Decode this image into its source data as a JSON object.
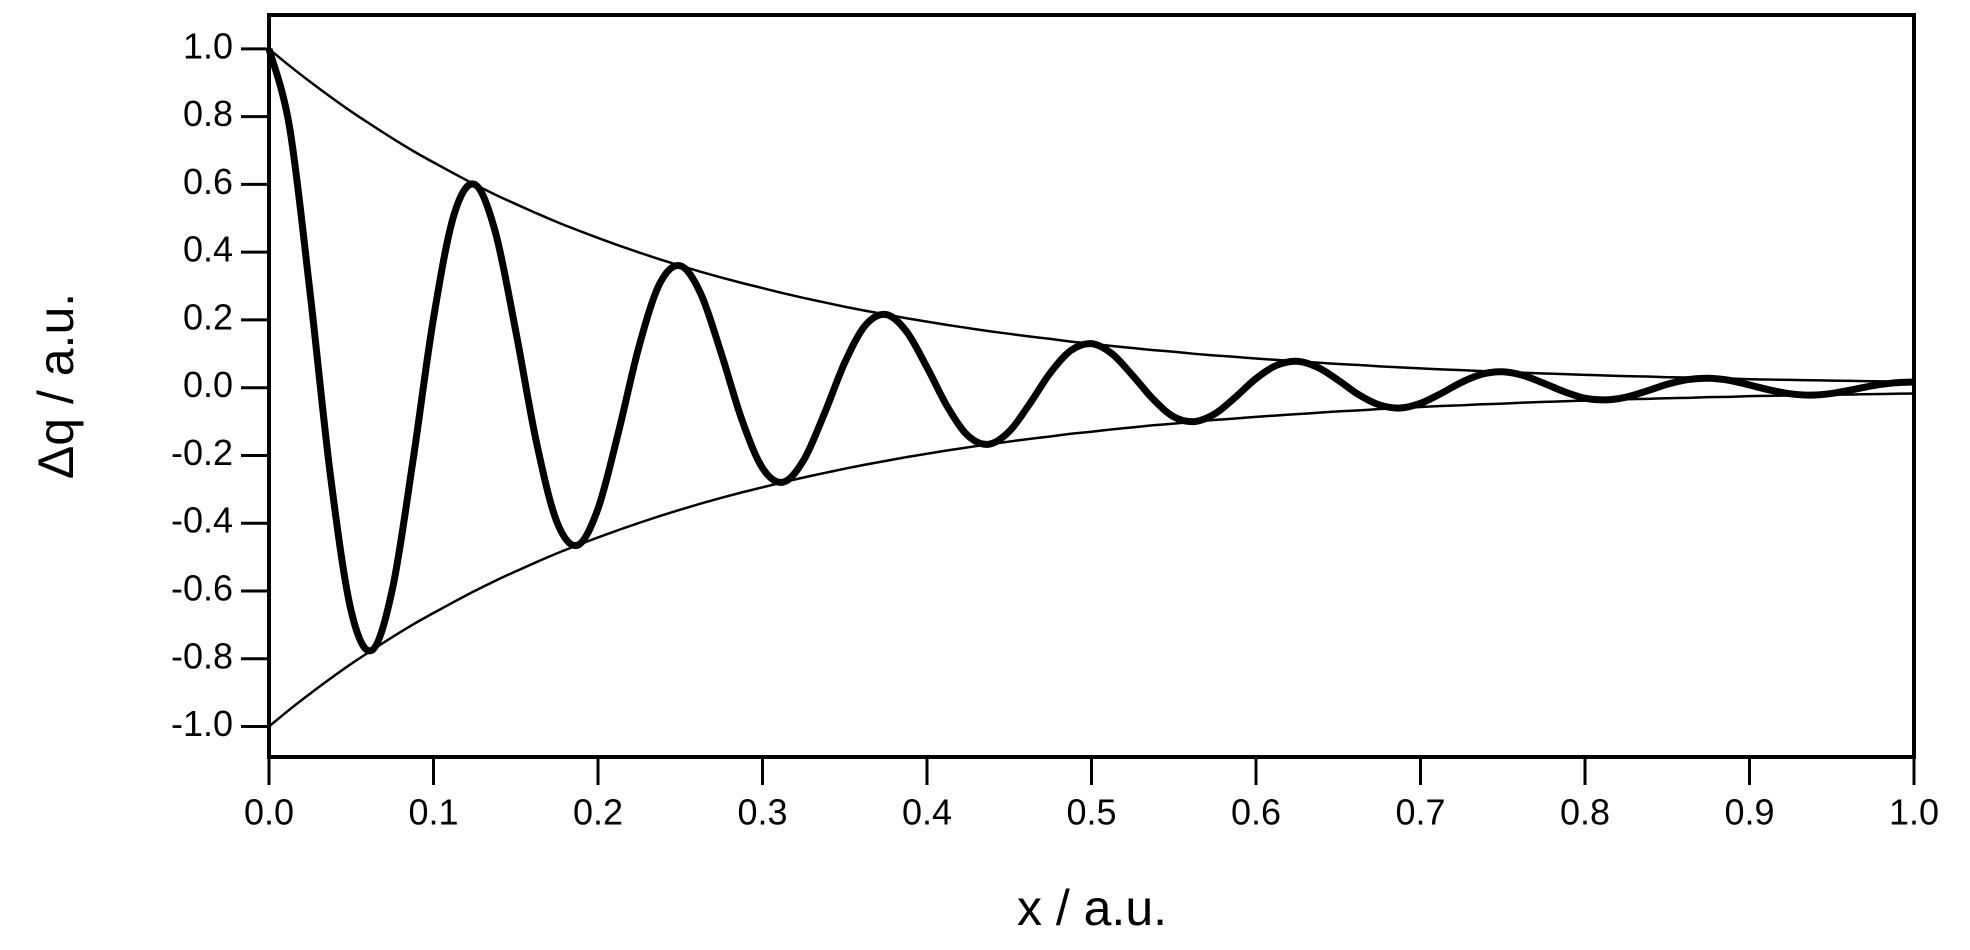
{
  "chart_data": {
    "type": "line",
    "xlabel": "x / a.u.",
    "ylabel": "Δq / a.u.",
    "x": [
      0,
      0.0125,
      0.025,
      0.0375,
      0.05,
      0.0625,
      0.075,
      0.0875,
      0.1,
      0.1125,
      0.125,
      0.1375,
      0.15,
      0.1625,
      0.175,
      0.1875,
      0.2,
      0.2125,
      0.225,
      0.2375,
      0.25,
      0.2625,
      0.275,
      0.2875,
      0.3,
      0.3125,
      0.325,
      0.3375,
      0.35,
      0.3625,
      0.375,
      0.3875,
      0.4,
      0.4125,
      0.425,
      0.4375,
      0.45,
      0.4625,
      0.475,
      0.4875,
      0.5,
      0.5125,
      0.525,
      0.5375,
      0.55,
      0.5625,
      0.575,
      0.5875,
      0.6,
      0.6125,
      0.625,
      0.6375,
      0.65,
      0.6625,
      0.675,
      0.6875,
      0.7,
      0.7125,
      0.725,
      0.7375,
      0.75,
      0.7625,
      0.775,
      0.7875,
      0.8,
      0.8125,
      0.825,
      0.8375,
      0.85,
      0.8625,
      0.875,
      0.8875,
      0.9,
      0.9125,
      0.925,
      0.9375,
      0.95,
      0.9625,
      0.975,
      0.9875,
      1
    ],
    "series": [
      {
        "color": "#000000",
        "values": [
          1.0,
          0.769,
          0.279,
          -0.265,
          -0.66,
          -0.775,
          -0.595,
          -0.216,
          0.205,
          0.511,
          0.6,
          0.461,
          0.167,
          -0.159,
          -0.396,
          -0.465,
          -0.357,
          -0.13,
          0.123,
          0.307,
          0.36,
          0.277,
          0.1,
          -0.095,
          -0.237,
          -0.279,
          -0.214,
          -0.078,
          0.074,
          0.184,
          0.216,
          0.166,
          0.06,
          -0.057,
          -0.142,
          -0.167,
          -0.129,
          -0.047,
          0.044,
          0.11,
          0.13,
          0.1,
          0.036,
          -0.034,
          -0.086,
          -0.1,
          -0.077,
          -0.028,
          0.027,
          0.066,
          0.078,
          0.06,
          0.022,
          -0.021,
          -0.051,
          -0.06,
          -0.046,
          -0.017,
          0.016,
          0.04,
          0.047,
          0.036,
          0.013,
          -0.012,
          -0.031,
          -0.036,
          -0.028,
          -0.01,
          0.01,
          0.024,
          0.028,
          0.022,
          0.008,
          -0.007,
          -0.018,
          -0.022,
          -0.017,
          -0.006,
          0.006,
          0.014,
          0.017
        ]
      },
      {
        "color": "#000000",
        "values": [
          1.0,
          0.95,
          0.903,
          0.858,
          0.815,
          0.775,
          0.736,
          0.699,
          0.665,
          0.632,
          0.6,
          0.57,
          0.542,
          0.515,
          0.489,
          0.465,
          0.442,
          0.42,
          0.399,
          0.379,
          0.36,
          0.342,
          0.325,
          0.309,
          0.294,
          0.279,
          0.265,
          0.252,
          0.239,
          0.227,
          0.216,
          0.205,
          0.195,
          0.185,
          0.176,
          0.167,
          0.159,
          0.151,
          0.144,
          0.136,
          0.13,
          0.123,
          0.117,
          0.111,
          0.106,
          0.1,
          0.095,
          0.091,
          0.086,
          0.082,
          0.078,
          0.074,
          0.07,
          0.067,
          0.063,
          0.06,
          0.057,
          0.054,
          0.052,
          0.049,
          0.047,
          0.044,
          0.042,
          0.04,
          0.038,
          0.036,
          0.034,
          0.033,
          0.031,
          0.03,
          0.028,
          0.027,
          0.025,
          0.024,
          0.023,
          0.022,
          0.021,
          0.02,
          0.019,
          0.018,
          0.017
        ]
      },
      {
        "color": "#000000",
        "values": [
          -1.0,
          -0.95,
          -0.903,
          -0.858,
          -0.815,
          -0.775,
          -0.736,
          -0.699,
          -0.665,
          -0.632,
          -0.6,
          -0.57,
          -0.542,
          -0.515,
          -0.489,
          -0.465,
          -0.442,
          -0.42,
          -0.399,
          -0.379,
          -0.36,
          -0.342,
          -0.325,
          -0.309,
          -0.294,
          -0.279,
          -0.265,
          -0.252,
          -0.239,
          -0.227,
          -0.216,
          -0.205,
          -0.195,
          -0.185,
          -0.176,
          -0.167,
          -0.159,
          -0.151,
          -0.144,
          -0.136,
          -0.13,
          -0.123,
          -0.117,
          -0.111,
          -0.106,
          -0.1,
          -0.095,
          -0.091,
          -0.086,
          -0.082,
          -0.078,
          -0.074,
          -0.07,
          -0.067,
          -0.063,
          -0.06,
          -0.057,
          -0.054,
          -0.052,
          -0.049,
          -0.047,
          -0.044,
          -0.042,
          -0.04,
          -0.038,
          -0.036,
          -0.034,
          -0.033,
          -0.031,
          -0.03,
          -0.028,
          -0.027,
          -0.025,
          -0.024,
          -0.023,
          -0.022,
          -0.021,
          -0.02,
          -0.019,
          -0.018,
          -0.017
        ]
      }
    ],
    "xlim": [
      0,
      1
    ],
    "ylim": [
      -1.09,
      1.1
    ],
    "xticks": [
      {
        "value": 0,
        "label": "0.0"
      },
      0.1,
      0.2,
      0.3,
      0.4,
      0.5,
      0.6,
      0.7,
      0.8,
      0.9,
      {
        "value": 1,
        "label": "1.0"
      }
    ],
    "yticks": [
      {
        "value": -1,
        "label": "-1.0"
      },
      -0.8,
      -0.6,
      -0.4,
      -0.2,
      {
        "value": 0,
        "label": "0.0"
      },
      0.2,
      0.4,
      0.6,
      0.8,
      {
        "value": 1,
        "label": "1.0"
      }
    ]
  }
}
